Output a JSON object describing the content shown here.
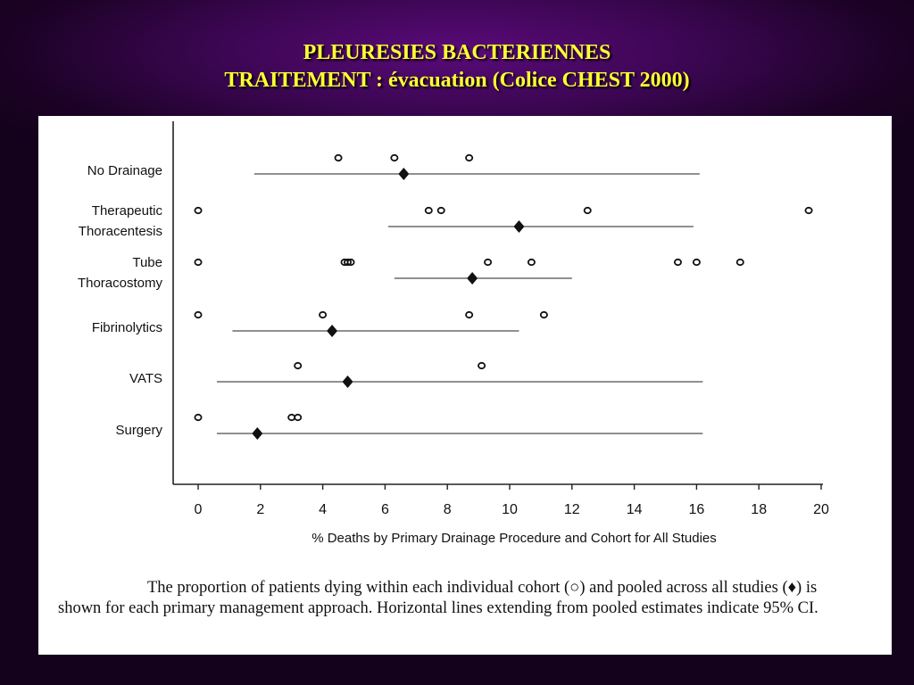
{
  "slide": {
    "title_line1": "PLEURESIES BACTERIENNES",
    "title_line2": "TRAITEMENT : évacuation (Colice CHEST 2000)"
  },
  "caption": "The proportion of patients dying within each individual cohort (○) and pooled across all studies (♦) is shown for each primary management approach. Horizontal lines extending from pooled estimates indicate 95% CI.",
  "chart_data": {
    "type": "scatter",
    "xlabel": "% Deaths by Primary Drainage Procedure and Cohort for All Studies",
    "ylabel": "",
    "xlim": [
      0,
      20
    ],
    "xticks": [
      0,
      2,
      4,
      6,
      8,
      10,
      12,
      14,
      16,
      18,
      20
    ],
    "grid": false,
    "categories": [
      {
        "label_lines": [
          "No Drainage"
        ],
        "cohorts": [
          4.5,
          6.3,
          8.7
        ],
        "pooled": 6.6,
        "ci": [
          1.8,
          16.1
        ]
      },
      {
        "label_lines": [
          "Therapeutic",
          "Thoracentesis"
        ],
        "cohorts": [
          0,
          7.4,
          7.8,
          12.5,
          19.6
        ],
        "pooled": 10.3,
        "ci": [
          6.1,
          15.9
        ]
      },
      {
        "label_lines": [
          "Tube",
          "Thoracostomy"
        ],
        "cohorts": [
          0,
          4.7,
          4.8,
          4.9,
          9.3,
          10.7,
          15.4,
          16.0,
          17.4
        ],
        "pooled": 8.8,
        "ci": [
          6.3,
          12.0
        ]
      },
      {
        "label_lines": [
          "Fibrinolytics"
        ],
        "cohorts": [
          0,
          4.0,
          8.7,
          11.1
        ],
        "pooled": 4.3,
        "ci": [
          1.1,
          10.3
        ]
      },
      {
        "label_lines": [
          "VATS"
        ],
        "cohorts": [
          3.2,
          9.1
        ],
        "pooled": 4.8,
        "ci": [
          0.6,
          16.2
        ]
      },
      {
        "label_lines": [
          "Surgery"
        ],
        "cohorts": [
          0,
          3.0,
          3.2
        ],
        "pooled": 1.9,
        "ci": [
          0.6,
          16.2
        ]
      }
    ],
    "legend": {
      "cohort_marker": "open circle",
      "pooled_marker": "filled diamond"
    }
  }
}
